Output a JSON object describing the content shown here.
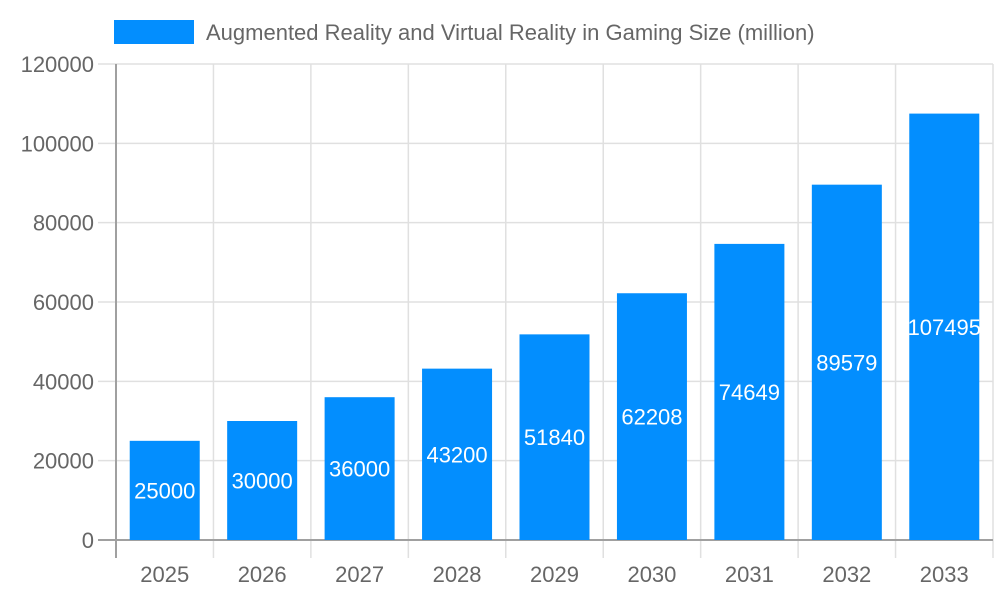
{
  "chart_data": {
    "type": "bar",
    "title": "",
    "legend": [
      {
        "label": "Augmented Reality and Virtual Reality in Gaming Size (million)",
        "color": "#038efe"
      }
    ],
    "legend_position": "top",
    "categories": [
      "2025",
      "2026",
      "2027",
      "2028",
      "2029",
      "2030",
      "2031",
      "2032",
      "2033"
    ],
    "series": [
      {
        "name": "Augmented Reality and Virtual Reality in Gaming Size (million)",
        "values": [
          25000,
          30000,
          36000,
          43200,
          51840,
          62208,
          74649,
          89579,
          107495
        ],
        "color": "#038efe"
      }
    ],
    "data_labels": [
      "25000",
      "30000",
      "36000",
      "43200",
      "51840",
      "62208",
      "74649",
      "89579",
      "107495"
    ],
    "xlabel": "",
    "ylabel": "",
    "ylim": [
      0,
      120000
    ],
    "yticks": [
      "0",
      "20000",
      "40000",
      "60000",
      "80000",
      "100000",
      "120000"
    ],
    "ytick_values": [
      0,
      20000,
      40000,
      60000,
      80000,
      100000,
      120000
    ],
    "grid": true
  },
  "colors": {
    "bar": "#038efe",
    "grid": "#e0e0e0",
    "axis": "#a0a0a0",
    "text": "#666666",
    "label": "#ffffff"
  }
}
